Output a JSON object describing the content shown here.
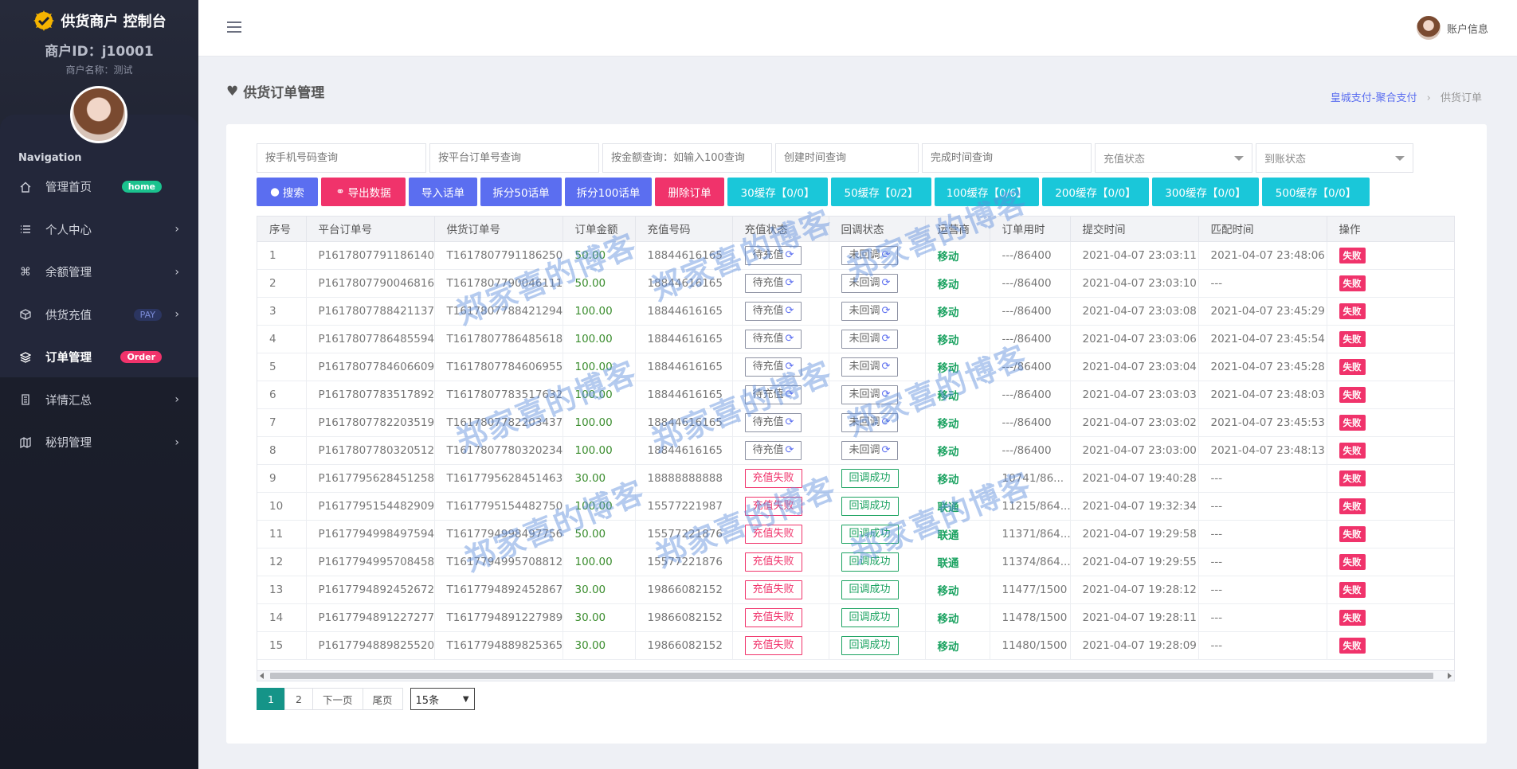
{
  "app": {
    "brand_title": "供货商户 控制台",
    "merchant_id": "商户ID：j10001",
    "merchant_name": "商户名称：测试"
  },
  "nav": {
    "title": "Navigation",
    "items": [
      {
        "label": "管理首页",
        "icon": "home-icon",
        "badge": "home"
      },
      {
        "label": "个人中心",
        "icon": "list-icon",
        "badge": ""
      },
      {
        "label": "余额管理",
        "icon": "command-icon",
        "badge": ""
      },
      {
        "label": "供货充值",
        "icon": "cube-icon",
        "badge": "PAY"
      },
      {
        "label": "订单管理",
        "icon": "layers-icon",
        "badge": "Order"
      },
      {
        "label": "详情汇总",
        "icon": "document-icon",
        "badge": ""
      },
      {
        "label": "秘钥管理",
        "icon": "map-icon",
        "badge": ""
      }
    ]
  },
  "topbar": {
    "account_label": "账户信息"
  },
  "page": {
    "title": "供货订单管理",
    "breadcrumb": {
      "link": "皇城支付-聚合支付",
      "current": "供货订单"
    }
  },
  "filters": {
    "phone_placeholder": "按手机号码查询",
    "platform_order_placeholder": "按平台订单号查询",
    "amount_placeholder": "按金额查询：如输入100查询",
    "create_time_placeholder": "创建时间查询",
    "finish_time_placeholder": "完成时间查询",
    "recharge_status": "充值状态",
    "settle_status": "到账状态"
  },
  "actions": {
    "search": "搜索",
    "export": "导出数据",
    "import": "导入话单",
    "split50": "拆分50话单",
    "split100": "拆分100话单",
    "delete": "删除订单",
    "cache30": "30缓存【0/0】",
    "cache50": "50缓存【0/2】",
    "cache100": "100缓存【0/6】",
    "cache200": "200缓存【0/0】",
    "cache300": "300缓存【0/0】",
    "cache500": "500缓存【0/0】"
  },
  "table": {
    "headers": [
      "序号",
      "平台订单号",
      "供货订单号",
      "订单金额",
      "充值号码",
      "充值状态",
      "回调状态",
      "运营商",
      "订单用时",
      "提交时间",
      "匹配时间",
      "操作"
    ],
    "rows": [
      [
        "1",
        "P1617807791186140",
        "T1617807791186250",
        "50.00",
        "18844616165",
        "待充值",
        "未回调",
        "移动",
        "---/86400",
        "2021-04-07 23:03:11",
        "2021-04-07 23:48:06",
        "失败"
      ],
      [
        "2",
        "P1617807790046816",
        "T1617807790046111",
        "50.00",
        "18844616165",
        "待充值",
        "未回调",
        "移动",
        "---/86400",
        "2021-04-07 23:03:10",
        "---",
        "失败"
      ],
      [
        "3",
        "P1617807788421137",
        "T1617807788421294",
        "100.00",
        "18844616165",
        "待充值",
        "未回调",
        "移动",
        "---/86400",
        "2021-04-07 23:03:08",
        "2021-04-07 23:45:29",
        "失败"
      ],
      [
        "4",
        "P1617807786485594",
        "T1617807786485618",
        "100.00",
        "18844616165",
        "待充值",
        "未回调",
        "移动",
        "---/86400",
        "2021-04-07 23:03:06",
        "2021-04-07 23:45:54",
        "失败"
      ],
      [
        "5",
        "P1617807784606609",
        "T1617807784606955",
        "100.00",
        "18844616165",
        "待充值",
        "未回调",
        "移动",
        "---/86400",
        "2021-04-07 23:03:04",
        "2021-04-07 23:45:28",
        "失败"
      ],
      [
        "6",
        "P1617807783517892",
        "T1617807783517632",
        "100.00",
        "18844616165",
        "待充值",
        "未回调",
        "移动",
        "---/86400",
        "2021-04-07 23:03:03",
        "2021-04-07 23:48:03",
        "失败"
      ],
      [
        "7",
        "P1617807782203519",
        "T1617807782203437",
        "100.00",
        "18844616165",
        "待充值",
        "未回调",
        "移动",
        "---/86400",
        "2021-04-07 23:03:02",
        "2021-04-07 23:45:53",
        "失败"
      ],
      [
        "8",
        "P1617807780320512",
        "T1617807780320234",
        "100.00",
        "18844616165",
        "待充值",
        "未回调",
        "移动",
        "---/86400",
        "2021-04-07 23:03:00",
        "2021-04-07 23:48:13",
        "失败"
      ],
      [
        "9",
        "P1617795628451258",
        "T1617795628451463",
        "30.00",
        "18888888888",
        "充值失败",
        "回调成功",
        "移动",
        "10741/86...",
        "2021-04-07 19:40:28",
        "---",
        "失败"
      ],
      [
        "10",
        "P1617795154482909",
        "T1617795154482750",
        "100.00",
        "15577221987",
        "充值失败",
        "回调成功",
        "联通",
        "11215/864...",
        "2021-04-07 19:32:34",
        "---",
        "失败"
      ],
      [
        "11",
        "P1617794998497594",
        "T1617794998497756",
        "50.00",
        "15577221876",
        "充值失败",
        "回调成功",
        "联通",
        "11371/864...",
        "2021-04-07 19:29:58",
        "---",
        "失败"
      ],
      [
        "12",
        "P1617794995708458",
        "T1617794995708812",
        "100.00",
        "15577221876",
        "充值失败",
        "回调成功",
        "联通",
        "11374/864...",
        "2021-04-07 19:29:55",
        "---",
        "失败"
      ],
      [
        "13",
        "P1617794892452672",
        "T1617794892452867",
        "30.00",
        "19866082152",
        "充值失败",
        "回调成功",
        "移动",
        "11477/1500",
        "2021-04-07 19:28:12",
        "---",
        "失败"
      ],
      [
        "14",
        "P1617794891227277",
        "T1617794891227989",
        "30.00",
        "19866082152",
        "充值失败",
        "回调成功",
        "移动",
        "11478/1500",
        "2021-04-07 19:28:11",
        "---",
        "失败"
      ],
      [
        "15",
        "P1617794889825520",
        "T1617794889825365",
        "30.00",
        "19866082152",
        "充值失败",
        "回调成功",
        "移动",
        "11480/1500",
        "2021-04-07 19:28:09",
        "---",
        "失败"
      ]
    ]
  },
  "pager": {
    "pages": [
      "1",
      "2"
    ],
    "next": "下一页",
    "last": "尾页",
    "page_size": "15条"
  },
  "watermark": "郑家喜的博客",
  "colors": {
    "sidebar_bg": "#1c1f2c",
    "primary": "#5b6ef0",
    "danger": "#f0336b",
    "info": "#1ac7d9",
    "success": "#1aa260",
    "pager_active": "#159488"
  }
}
